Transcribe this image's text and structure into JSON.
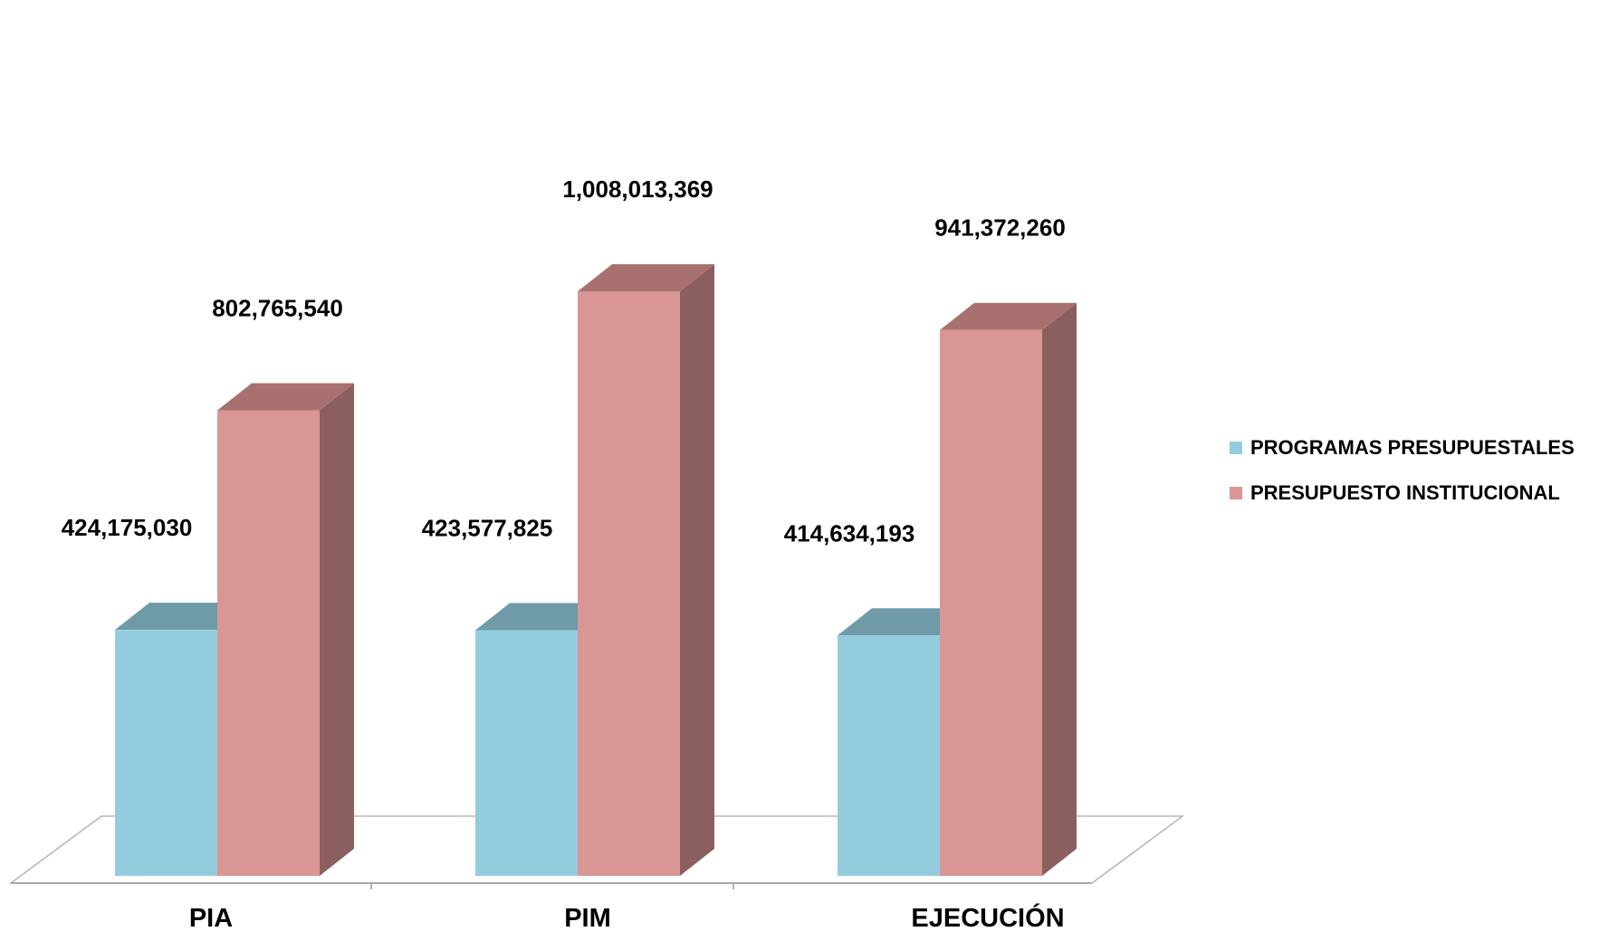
{
  "chart_data": {
    "type": "bar",
    "title": "",
    "xlabel": "",
    "ylabel": "",
    "categories": [
      "PIA",
      "PIM",
      "EJECUCIÓN"
    ],
    "series": [
      {
        "name": "PROGRAMAS PRESUPUESTALES",
        "values": [
          424175030,
          423577825,
          414634193
        ],
        "labels": [
          "424,175,030",
          "423,577,825",
          "414,634,193"
        ],
        "color": "#93CDDD",
        "top_color": "#6E9BA7",
        "side_color": "#5F8A95"
      },
      {
        "name": "PRESUPUESTO INSTITUCIONAL",
        "values": [
          802765540,
          1008013369,
          941372260
        ],
        "labels": [
          "802,765,540",
          "1,008,013,369",
          "941,372,260"
        ],
        "color": "#D99694",
        "top_color": "#A8716F",
        "side_color": "#8B5F5E"
      }
    ],
    "style": "3d-clustered-column",
    "grid": false,
    "legend_position": "right"
  }
}
